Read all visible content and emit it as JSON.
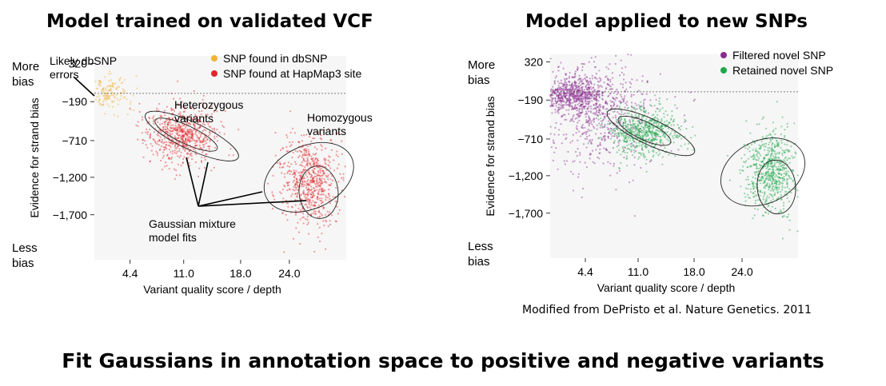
{
  "panels": {
    "left_title": "Model trained on validated VCF",
    "right_title": "Model applied to new SNPs"
  },
  "citation": "Modified from DePristo et al. Nature Genetics. 2011",
  "footer": "Fit Gaussians in annotation space to positive and negative variants",
  "colors": {
    "dbsnp": "#f2b233",
    "hapmap": "#e2252b",
    "filtered": "#8a2b8e",
    "retained": "#1fa64a",
    "background": "#f6f6f6"
  },
  "chart_data": [
    {
      "type": "scatter",
      "xlabel": "Variant quality score / depth",
      "ylabel": "Evidence for strand bias",
      "xticks": [
        4.4,
        11.0,
        18.0,
        24.0
      ],
      "yticks": [
        320,
        -190,
        -710,
        -1200,
        -1700
      ],
      "xtick_labels": [
        "4.4",
        "11.0",
        "18.0",
        "24.0"
      ],
      "ytick_labels": [
        "320",
        "−190",
        "−710",
        "−1,200",
        "−1,700"
      ],
      "xlim": [
        0,
        31
      ],
      "ylim": [
        -2300,
        420
      ],
      "y_top_label": [
        "More",
        "bias"
      ],
      "y_bottom_label": [
        "Less",
        "bias"
      ],
      "grid": false,
      "legend_position": "top-right",
      "series": [
        {
          "name": "SNP found in dbSNP",
          "color": "#f2b233",
          "clusters": [
            {
              "cx": 1.5,
              "cy": -80,
              "sx": 1.4,
              "sy": 110
            }
          ]
        },
        {
          "name": "SNP found at HapMap3 site",
          "color": "#e2252b",
          "clusters": [
            {
              "cx": 10.8,
              "cy": -620,
              "sx": 2.1,
              "sy": 190
            },
            {
              "cx": 26.5,
              "cy": -1250,
              "sx": 1.8,
              "sy": 300
            }
          ]
        }
      ],
      "gaussians": [
        {
          "cx": 12.0,
          "cy": -650,
          "rx": 6.3,
          "ry": 180,
          "angle_deg": 25
        },
        {
          "cx": 11.3,
          "cy": -630,
          "rx": 4.2,
          "ry": 120,
          "angle_deg": 25
        },
        {
          "cx": 26.4,
          "cy": -1200,
          "rx": 5.8,
          "ry": 420,
          "angle_deg": -25
        },
        {
          "cx": 27.6,
          "cy": -1400,
          "rx": 2.4,
          "ry": 350,
          "angle_deg": -5
        }
      ],
      "reference_line_y": -80,
      "annotations": [
        {
          "lines": [
            "Likely dbSNP",
            "errors"
          ]
        },
        {
          "lines": [
            "Heterozygous",
            "variants"
          ]
        },
        {
          "lines": [
            "Homozygous",
            "variants"
          ]
        },
        {
          "lines": [
            "Gaussian mixture",
            "model fits"
          ]
        }
      ]
    },
    {
      "type": "scatter",
      "xlabel": "Variant quality score / depth",
      "ylabel": "Evidence for strand bias",
      "xticks": [
        4.4,
        11.0,
        18.0,
        24.0
      ],
      "yticks": [
        320,
        -190,
        -710,
        -1200,
        -1700
      ],
      "xtick_labels": [
        "4.4",
        "11.0",
        "18.0",
        "24.0"
      ],
      "ytick_labels": [
        "320",
        "−190",
        "−710",
        "−1,200",
        "−1,700"
      ],
      "xlim": [
        0,
        31
      ],
      "ylim": [
        -2300,
        420
      ],
      "y_top_label": [
        "More",
        "bias"
      ],
      "y_bottom_label": [
        "Less",
        "bias"
      ],
      "grid": false,
      "legend_position": "top-right",
      "series": [
        {
          "name": "Filtered novel SNP",
          "color": "#8a2b8e",
          "clusters": [
            {
              "cx": 3.0,
              "cy": -120,
              "sx": 2.2,
              "sy": 110
            },
            {
              "cx": 6.0,
              "cy": -400,
              "sx": 4.0,
              "sy": 380
            }
          ]
        },
        {
          "name": "Retained novel SNP",
          "color": "#1fa64a",
          "clusters": [
            {
              "cx": 11.8,
              "cy": -600,
              "sx": 2.2,
              "sy": 170
            },
            {
              "cx": 27.5,
              "cy": -1150,
              "sx": 1.6,
              "sy": 280
            }
          ]
        }
      ],
      "gaussians": [
        {
          "cx": 12.6,
          "cy": -620,
          "rx": 6.0,
          "ry": 170,
          "angle_deg": 25
        },
        {
          "cx": 11.8,
          "cy": -600,
          "rx": 3.6,
          "ry": 120,
          "angle_deg": 25
        },
        {
          "cx": 26.6,
          "cy": -1150,
          "rx": 5.5,
          "ry": 420,
          "angle_deg": -25
        },
        {
          "cx": 28.3,
          "cy": -1350,
          "rx": 2.4,
          "ry": 360,
          "angle_deg": -5
        }
      ],
      "reference_line_y": -80,
      "annotations": []
    }
  ]
}
